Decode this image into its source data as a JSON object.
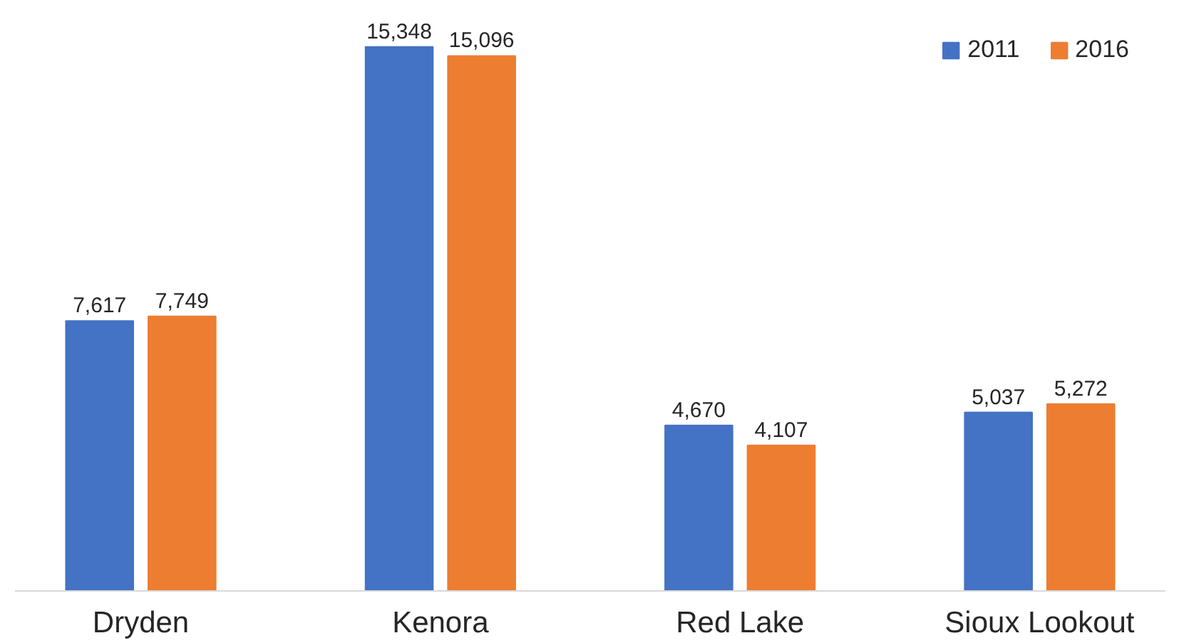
{
  "chart_data": {
    "type": "bar",
    "categories": [
      "Dryden",
      "Kenora",
      "Red Lake",
      "Sioux Lookout"
    ],
    "series": [
      {
        "name": "2011",
        "color": "#4472c4",
        "values": [
          7617,
          15348,
          4670,
          5037
        ],
        "value_labels": [
          "7,617",
          "15,348",
          "4,670",
          "5,037"
        ]
      },
      {
        "name": "2016",
        "color": "#ed7d31",
        "values": [
          7749,
          15096,
          4107,
          5272
        ],
        "value_labels": [
          "7,749",
          "15,096",
          "4,107",
          "5,272"
        ]
      }
    ],
    "legend": "top right",
    "grid": false
  }
}
